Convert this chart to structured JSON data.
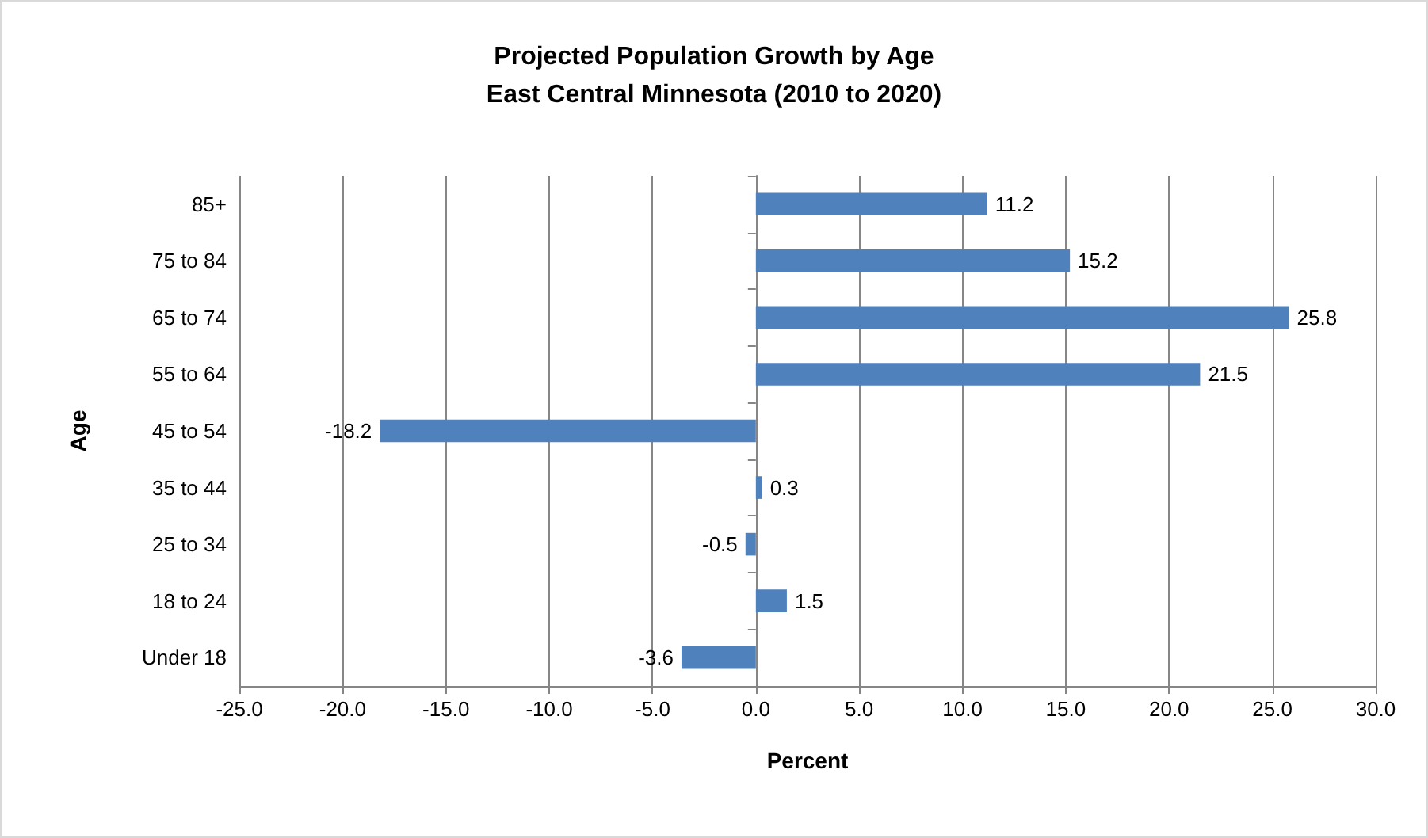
{
  "chart_data": {
    "type": "bar",
    "orientation": "horizontal",
    "title": "Projected Population Growth by Age\nEast Central Minnesota (2010 to 2020)",
    "xlabel": "Percent",
    "ylabel": "Age",
    "categories": [
      "85+",
      "75 to 84",
      "65 to 74",
      "55 to 64",
      "45 to 54",
      "35 to 44",
      "25 to 34",
      "18 to 24",
      "Under 18"
    ],
    "values": [
      11.2,
      15.2,
      25.8,
      21.5,
      -18.2,
      0.3,
      -0.5,
      1.5,
      -3.6
    ],
    "color": "#4f81bd",
    "data_labels": true,
    "grid": "x",
    "xlim": [
      -25,
      30
    ],
    "xticks": [
      {
        "value": -25,
        "label": "-25.0"
      },
      {
        "value": -20,
        "label": "-20.0"
      },
      {
        "value": -15,
        "label": "-15.0"
      },
      {
        "value": -10,
        "label": "-10.0"
      },
      {
        "value": -5,
        "label": "-5.0"
      },
      {
        "value": 0,
        "label": "0.0"
      },
      {
        "value": 5,
        "label": "5.0"
      },
      {
        "value": 10,
        "label": "10.0"
      },
      {
        "value": 15,
        "label": "15.0"
      },
      {
        "value": 20,
        "label": "20.0"
      },
      {
        "value": 25,
        "label": "25.0"
      },
      {
        "value": 30,
        "label": "30.0"
      }
    ]
  }
}
